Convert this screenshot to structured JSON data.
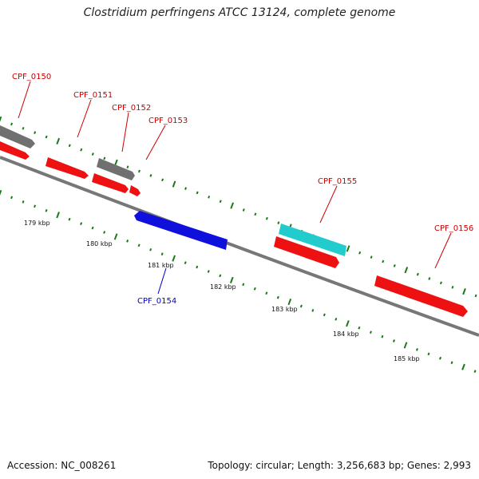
{
  "title": "Clostridium perfringens ATCC 13124, complete genome",
  "footer": {
    "accession": "Accession: NC_008261",
    "summary": "Topology: circular; Length: 3,256,683 bp; Genes: 2,993"
  },
  "colors": {
    "backbone": "#808080",
    "tick": "#1a7a1a",
    "gray_gene": "#707070",
    "red_gene": "#ee1111",
    "blue_gene": "#1010dd",
    "cyan_gene": "#22cccc",
    "label_red": "#cc0000",
    "label_blue": "#0000cc"
  },
  "kbp_labels": [
    "179 kbp",
    "180 kbp",
    "181 kbp",
    "182 kbp",
    "183 kbp",
    "184 kbp",
    "185 kbp"
  ],
  "gene_labels": [
    "CPF_0150",
    "CPF_0151",
    "CPF_0152",
    "CPF_0153",
    "CPF_0154",
    "CPF_0155",
    "CPF_0156"
  ]
}
